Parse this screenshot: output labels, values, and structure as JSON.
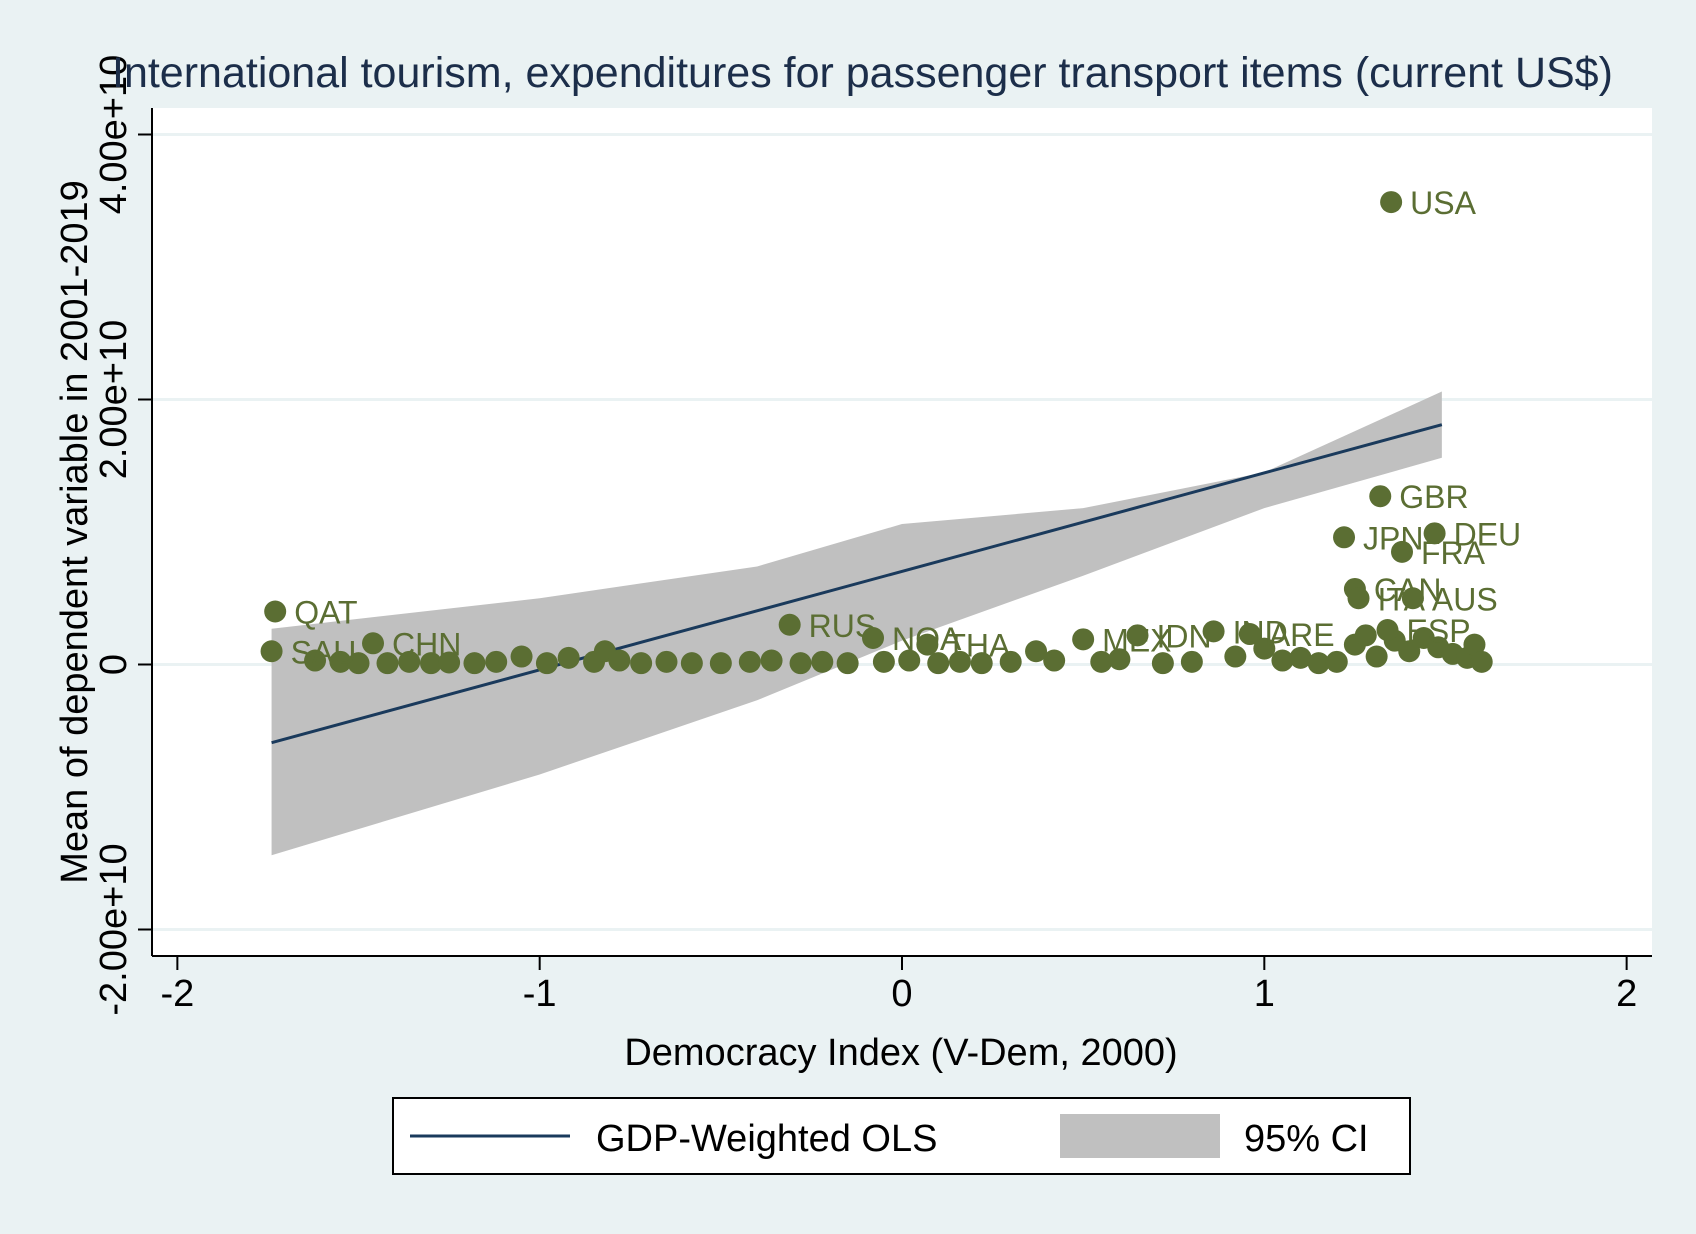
{
  "chart_data": {
    "type": "scatter",
    "title": "International tourism, expenditures for passenger transport items (current US$)",
    "xlabel": "Democracy Index (V-Dem, 2000)",
    "ylabel": "Mean of dependent variable in 2001-2019",
    "xlim": [
      -2.07,
      2.07
    ],
    "ylim": [
      -22000000000.0,
      42000000000.0
    ],
    "x_ticks": [
      -2,
      -1,
      0,
      1,
      2
    ],
    "x_tick_labels": [
      "-2",
      "-1",
      "0",
      "1",
      "2"
    ],
    "y_ticks": [
      -20000000000.0,
      0,
      20000000000.0,
      40000000000.0
    ],
    "y_tick_labels": [
      "-2.00e+10",
      "0",
      "2.00e+10",
      "4.00e+10"
    ],
    "grid": true,
    "legend_position": "bottom",
    "colors": {
      "background": "#eaf2f3",
      "plot_background": "#ffffff",
      "points": "#5b6e33",
      "fit_line": "#1a3a5c",
      "ci_band": "#c0c0c0",
      "grid": "#eaf2f3"
    },
    "fit": {
      "name": "GDP-Weighted OLS",
      "x": [
        -1.74,
        1.49
      ],
      "y": [
        -5900000000.0,
        18100000000.0
      ]
    },
    "ci": {
      "name": "95% CI",
      "x": [
        -1.74,
        -1.0,
        -0.4,
        0.0,
        0.5,
        1.0,
        1.49
      ],
      "lower": [
        -14400000000.0,
        -8300000000.0,
        -2700000000.0,
        1800000000.0,
        6700000000.0,
        11800000000.0,
        15600000000.0
      ],
      "upper": [
        2700000000.0,
        5000000000.0,
        7400000000.0,
        10600000000.0,
        11800000000.0,
        14500000000.0,
        20600000000.0
      ]
    },
    "labeled_points": [
      {
        "label": "USA",
        "x": 1.35,
        "y": 34900000000.0
      },
      {
        "label": "GBR",
        "x": 1.32,
        "y": 12700000000.0
      },
      {
        "label": "DEU",
        "x": 1.47,
        "y": 9900000000.0
      },
      {
        "label": "JPN",
        "x": 1.22,
        "y": 9600000000.0
      },
      {
        "label": "FRA",
        "x": 1.38,
        "y": 8500000000.0
      },
      {
        "label": "CAN",
        "x": 1.25,
        "y": 5700000000.0
      },
      {
        "label": "ITA",
        "x": 1.26,
        "y": 5000000000.0
      },
      {
        "label": "AUS",
        "x": 1.41,
        "y": 5000000000.0
      },
      {
        "label": "QAT",
        "x": -1.73,
        "y": 4000000000.0
      },
      {
        "label": "RUS",
        "x": -0.31,
        "y": 3000000000.0
      },
      {
        "label": "NOA",
        "x": -0.08,
        "y": 2000000000.0
      },
      {
        "label": "THA",
        "x": 0.07,
        "y": 1500000000.0
      },
      {
        "label": "MEX",
        "x": 0.5,
        "y": 1900000000.0
      },
      {
        "label": "IDN",
        "x": 0.65,
        "y": 2200000000.0
      },
      {
        "label": "IND",
        "x": 0.86,
        "y": 2500000000.0
      },
      {
        "label": "ARE",
        "x": 0.96,
        "y": 2300000000.0
      },
      {
        "label": "ESP",
        "x": 1.34,
        "y": 2600000000.0
      },
      {
        "label": "SAU",
        "x": -1.74,
        "y": 1000000000.0
      },
      {
        "label": "CHN",
        "x": -1.46,
        "y": 1600000000.0
      }
    ],
    "unlabeled_points": [
      {
        "x": -1.62,
        "y": 300000000.0
      },
      {
        "x": -1.55,
        "y": 200000000.0
      },
      {
        "x": -1.5,
        "y": 100000000.0
      },
      {
        "x": -1.42,
        "y": 100000000.0
      },
      {
        "x": -1.36,
        "y": 200000000.0
      },
      {
        "x": -1.3,
        "y": 100000000.0
      },
      {
        "x": -1.25,
        "y": 150000000.0
      },
      {
        "x": -1.18,
        "y": 100000000.0
      },
      {
        "x": -1.12,
        "y": 200000000.0
      },
      {
        "x": -1.05,
        "y": 600000000.0
      },
      {
        "x": -0.98,
        "y": 100000000.0
      },
      {
        "x": -0.92,
        "y": 500000000.0
      },
      {
        "x": -0.85,
        "y": 200000000.0
      },
      {
        "x": -0.82,
        "y": 1000000000.0
      },
      {
        "x": -0.78,
        "y": 300000000.0
      },
      {
        "x": -0.72,
        "y": 100000000.0
      },
      {
        "x": -0.65,
        "y": 200000000.0
      },
      {
        "x": -0.58,
        "y": 100000000.0
      },
      {
        "x": -0.5,
        "y": 100000000.0
      },
      {
        "x": -0.42,
        "y": 200000000.0
      },
      {
        "x": -0.36,
        "y": 300000000.0
      },
      {
        "x": -0.28,
        "y": 100000000.0
      },
      {
        "x": -0.22,
        "y": 200000000.0
      },
      {
        "x": -0.15,
        "y": 100000000.0
      },
      {
        "x": -0.05,
        "y": 200000000.0
      },
      {
        "x": 0.02,
        "y": 300000000.0
      },
      {
        "x": 0.1,
        "y": 100000000.0
      },
      {
        "x": 0.16,
        "y": 200000000.0
      },
      {
        "x": 0.22,
        "y": 100000000.0
      },
      {
        "x": 0.3,
        "y": 200000000.0
      },
      {
        "x": 0.37,
        "y": 1000000000.0
      },
      {
        "x": 0.42,
        "y": 300000000.0
      },
      {
        "x": 0.55,
        "y": 200000000.0
      },
      {
        "x": 0.6,
        "y": 400000000.0
      },
      {
        "x": 0.72,
        "y": 100000000.0
      },
      {
        "x": 0.8,
        "y": 200000000.0
      },
      {
        "x": 0.92,
        "y": 600000000.0
      },
      {
        "x": 1.0,
        "y": 1200000000.0
      },
      {
        "x": 1.05,
        "y": 300000000.0
      },
      {
        "x": 1.1,
        "y": 500000000.0
      },
      {
        "x": 1.15,
        "y": 100000000.0
      },
      {
        "x": 1.2,
        "y": 200000000.0
      },
      {
        "x": 1.25,
        "y": 1500000000.0
      },
      {
        "x": 1.28,
        "y": 2200000000.0
      },
      {
        "x": 1.31,
        "y": 600000000.0
      },
      {
        "x": 1.36,
        "y": 1800000000.0
      },
      {
        "x": 1.4,
        "y": 1000000000.0
      },
      {
        "x": 1.44,
        "y": 2000000000.0
      },
      {
        "x": 1.48,
        "y": 1300000000.0
      },
      {
        "x": 1.52,
        "y": 800000000.0
      },
      {
        "x": 1.56,
        "y": 500000000.0
      },
      {
        "x": 1.58,
        "y": 1500000000.0
      },
      {
        "x": 1.6,
        "y": 200000000.0
      }
    ]
  }
}
